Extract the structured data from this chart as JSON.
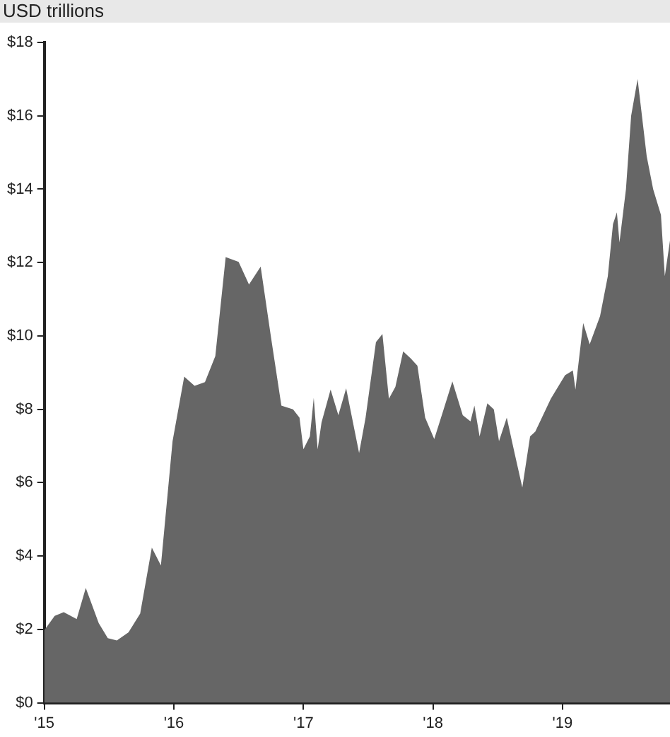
{
  "chart_data": {
    "type": "area",
    "ylabel": "USD trillions",
    "grid": false,
    "legend": false,
    "color": "#666666",
    "x": [
      2015.0,
      2015.08,
      2015.15,
      2015.25,
      2015.32,
      2015.42,
      2015.49,
      2015.56,
      2015.65,
      2015.74,
      2015.83,
      2015.9,
      2015.99,
      2016.08,
      2016.16,
      2016.24,
      2016.32,
      2016.4,
      2016.5,
      2016.58,
      2016.67,
      2016.75,
      2016.83,
      2016.92,
      2016.97,
      2017.0,
      2017.05,
      2017.08,
      2017.11,
      2017.14,
      2017.21,
      2017.27,
      2017.33,
      2017.43,
      2017.48,
      2017.56,
      2017.61,
      2017.66,
      2017.71,
      2017.77,
      2017.83,
      2017.88,
      2017.94,
      2018.01,
      2018.08,
      2018.15,
      2018.23,
      2018.29,
      2018.32,
      2018.36,
      2018.42,
      2018.47,
      2018.51,
      2018.57,
      2018.63,
      2018.69,
      2018.75,
      2018.79,
      2018.91,
      2019.02,
      2019.08,
      2019.1,
      2019.16,
      2019.21,
      2019.29,
      2019.35,
      2019.39,
      2019.42,
      2019.44,
      2019.49,
      2019.53,
      2019.58,
      2019.62,
      2019.65,
      2019.7,
      2019.76,
      2019.79,
      2019.83
    ],
    "values": [
      1.98,
      2.37,
      2.47,
      2.28,
      3.13,
      2.17,
      1.76,
      1.7,
      1.92,
      2.43,
      4.23,
      3.74,
      7.13,
      8.89,
      8.64,
      8.74,
      9.45,
      12.15,
      12.02,
      11.4,
      11.89,
      9.96,
      8.1,
      8.0,
      7.77,
      6.91,
      7.26,
      8.31,
      6.91,
      7.64,
      8.54,
      7.84,
      8.57,
      6.81,
      7.77,
      9.83,
      10.05,
      8.29,
      8.61,
      9.58,
      9.38,
      9.19,
      7.77,
      7.19,
      7.97,
      8.76,
      7.84,
      7.67,
      8.1,
      7.26,
      8.16,
      8.0,
      7.13,
      7.77,
      6.81,
      5.87,
      7.26,
      7.39,
      8.29,
      8.93,
      9.06,
      8.54,
      10.35,
      9.77,
      10.54,
      11.63,
      13.05,
      13.37,
      12.55,
      14.0,
      16.0,
      17.0,
      15.8,
      14.9,
      14.0,
      13.3,
      11.63,
      12.6
    ],
    "xlim": [
      2015,
      2019.83
    ],
    "xticks": [
      {
        "value": 2015,
        "label": "'15"
      },
      {
        "value": 2016,
        "label": "'16"
      },
      {
        "value": 2017,
        "label": "'17"
      },
      {
        "value": 2018,
        "label": "'18"
      },
      {
        "value": 2019,
        "label": "'19"
      }
    ],
    "ylim": [
      0,
      18
    ],
    "yticks": [
      {
        "value": 0,
        "label": "$0"
      },
      {
        "value": 2,
        "label": "$2"
      },
      {
        "value": 4,
        "label": "$4"
      },
      {
        "value": 6,
        "label": "$6"
      },
      {
        "value": 8,
        "label": "$8"
      },
      {
        "value": 10,
        "label": "$10"
      },
      {
        "value": 12,
        "label": "$12"
      },
      {
        "value": 14,
        "label": "$14"
      },
      {
        "value": 16,
        "label": "$16"
      },
      {
        "value": 18,
        "label": "$18"
      }
    ]
  }
}
